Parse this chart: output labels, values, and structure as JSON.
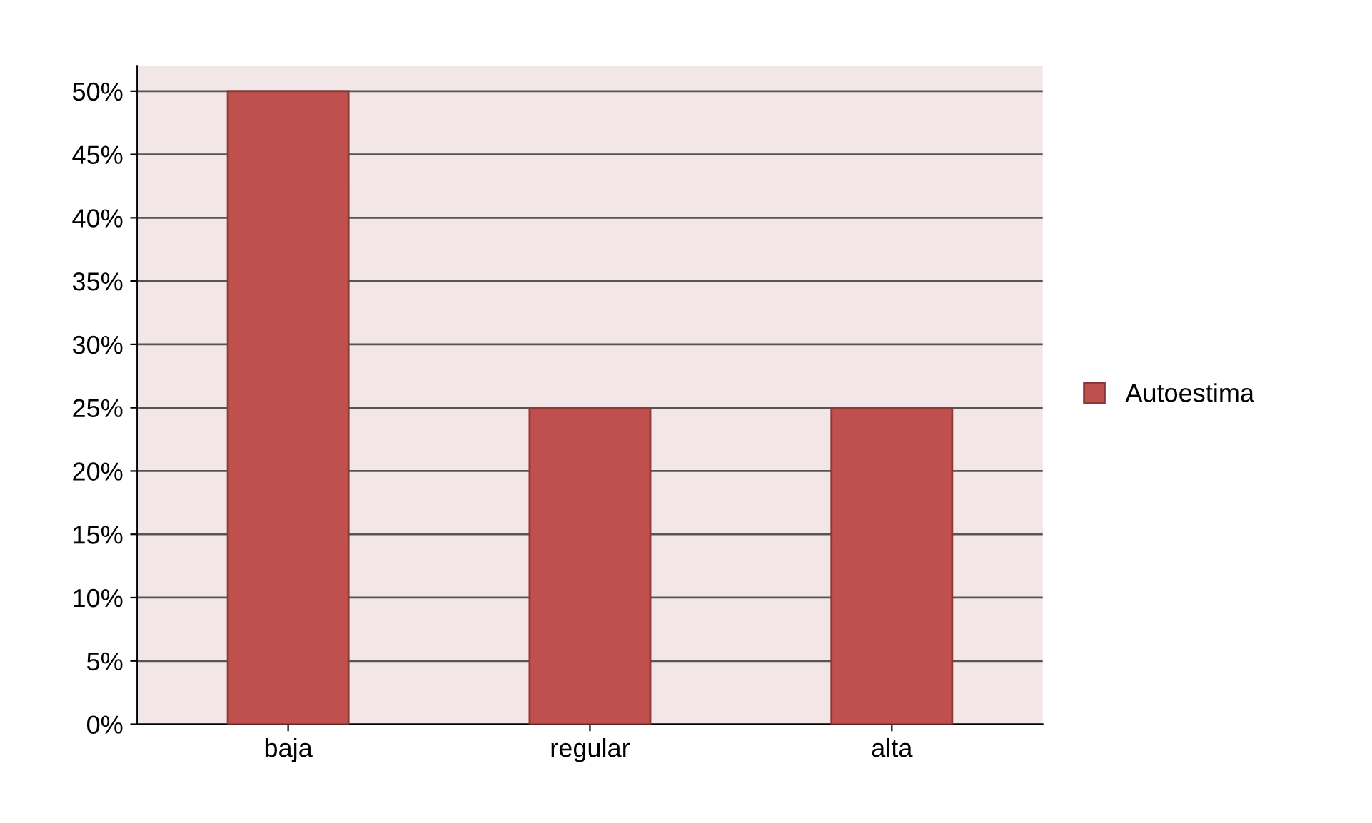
{
  "chart_data": {
    "type": "bar",
    "categories": [
      "baja",
      "regular",
      "alta"
    ],
    "series": [
      {
        "name": "Autoestima",
        "color": "#c0504d",
        "values": [
          50,
          25,
          25
        ]
      }
    ],
    "ylim": [
      0,
      52
    ],
    "yticks": [
      {
        "value": 0,
        "label": "0%"
      },
      {
        "value": 5,
        "label": "5%"
      },
      {
        "value": 10,
        "label": "10%"
      },
      {
        "value": 15,
        "label": "15%"
      },
      {
        "value": 20,
        "label": "20%"
      },
      {
        "value": 25,
        "label": "25%"
      },
      {
        "value": 30,
        "label": "30%"
      },
      {
        "value": 35,
        "label": "35%"
      },
      {
        "value": 40,
        "label": "40%"
      },
      {
        "value": 45,
        "label": "45%"
      },
      {
        "value": 50,
        "label": "50%"
      }
    ],
    "grid": "y",
    "legend": "right"
  }
}
